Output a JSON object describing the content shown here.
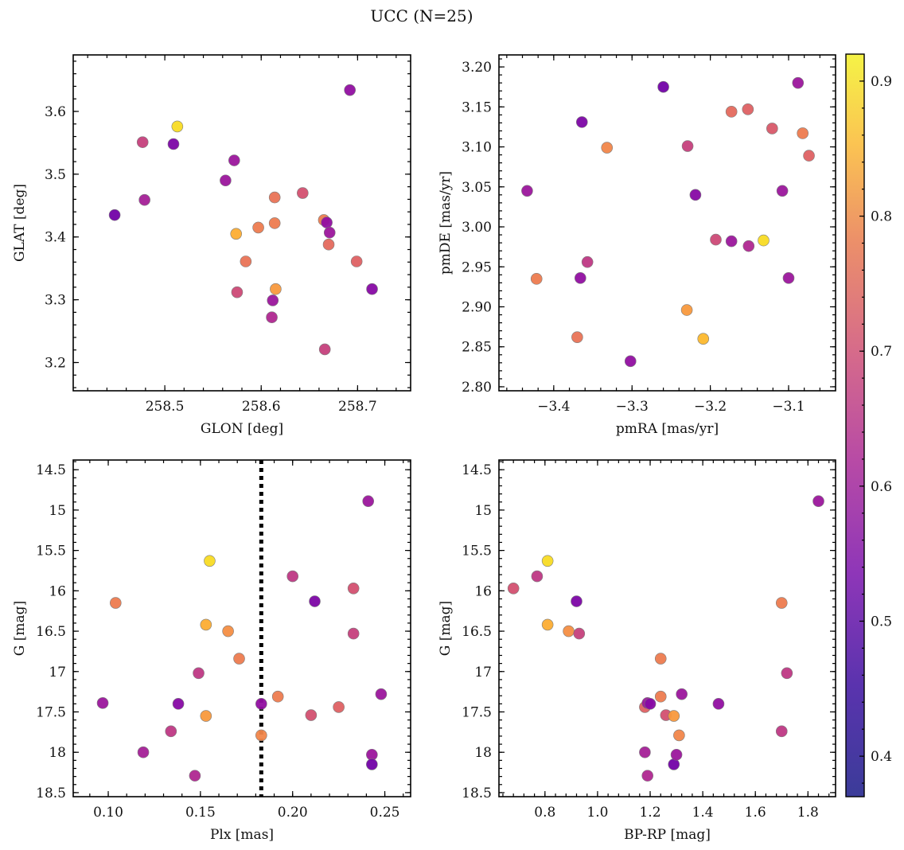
{
  "figure": {
    "title": "UCC (N=25)"
  },
  "colorbar": {
    "range": [
      0.37,
      0.92
    ],
    "ticks": [
      0.4,
      0.5,
      0.6,
      0.7,
      0.8,
      0.9
    ],
    "colormap": "plasma"
  },
  "chart_data": [
    {
      "type": "scatter",
      "id": "glon-glat",
      "xlabel": "GLON [deg]",
      "ylabel": "GLAT [deg]",
      "xlim": [
        258.405,
        258.755
      ],
      "ylim": [
        3.155,
        3.69
      ],
      "xticks": [
        258.5,
        258.6,
        258.7
      ],
      "yticks": [
        3.2,
        3.3,
        3.4,
        3.5,
        3.6
      ],
      "grid": false,
      "points": [
        {
          "x": 258.448,
          "y": 3.435,
          "c": 0.4
        },
        {
          "x": 258.477,
          "y": 3.551,
          "c": 0.58
        },
        {
          "x": 258.479,
          "y": 3.459,
          "c": 0.5
        },
        {
          "x": 258.509,
          "y": 3.548,
          "c": 0.42
        },
        {
          "x": 258.513,
          "y": 3.576,
          "c": 0.9
        },
        {
          "x": 258.563,
          "y": 3.49,
          "c": 0.48
        },
        {
          "x": 258.572,
          "y": 3.522,
          "c": 0.48
        },
        {
          "x": 258.574,
          "y": 3.405,
          "c": 0.82
        },
        {
          "x": 258.575,
          "y": 3.312,
          "c": 0.6
        },
        {
          "x": 258.584,
          "y": 3.361,
          "c": 0.7
        },
        {
          "x": 258.597,
          "y": 3.415,
          "c": 0.72
        },
        {
          "x": 258.611,
          "y": 3.272,
          "c": 0.52
        },
        {
          "x": 258.612,
          "y": 3.299,
          "c": 0.48
        },
        {
          "x": 258.614,
          "y": 3.463,
          "c": 0.7
        },
        {
          "x": 258.614,
          "y": 3.422,
          "c": 0.72
        },
        {
          "x": 258.615,
          "y": 3.317,
          "c": 0.78
        },
        {
          "x": 258.643,
          "y": 3.47,
          "c": 0.62
        },
        {
          "x": 258.665,
          "y": 3.427,
          "c": 0.72
        },
        {
          "x": 258.666,
          "y": 3.221,
          "c": 0.58
        },
        {
          "x": 258.668,
          "y": 3.423,
          "c": 0.46
        },
        {
          "x": 258.67,
          "y": 3.388,
          "c": 0.68
        },
        {
          "x": 258.671,
          "y": 3.407,
          "c": 0.48
        },
        {
          "x": 258.692,
          "y": 3.634,
          "c": 0.46
        },
        {
          "x": 258.699,
          "y": 3.361,
          "c": 0.66
        },
        {
          "x": 258.715,
          "y": 3.317,
          "c": 0.44
        }
      ]
    },
    {
      "type": "scatter",
      "id": "pmra-pmde",
      "xlabel": "pmRA [mas/yr]",
      "ylabel": "pmDE [mas/yr]",
      "xlim": [
        -3.47,
        -3.04
      ],
      "ylim": [
        2.795,
        3.215
      ],
      "xticks": [
        -3.4,
        -3.3,
        -3.2,
        -3.1
      ],
      "xtick_labels": [
        "−3.4",
        "−3.3",
        "−3.2",
        "−3.1"
      ],
      "yticks": [
        2.8,
        2.85,
        2.9,
        2.95,
        3.0,
        3.05,
        3.1,
        3.15,
        3.2
      ],
      "ytick_labels": [
        "2.80",
        "2.85",
        "2.90",
        "2.95",
        "3.00",
        "3.05",
        "3.10",
        "3.15",
        "3.20"
      ],
      "grid": false,
      "points": [
        {
          "x": -3.434,
          "y": 3.045,
          "c": 0.48
        },
        {
          "x": -3.422,
          "y": 2.935,
          "c": 0.72
        },
        {
          "x": -3.37,
          "y": 2.862,
          "c": 0.7
        },
        {
          "x": -3.366,
          "y": 2.936,
          "c": 0.46
        },
        {
          "x": -3.364,
          "y": 3.131,
          "c": 0.42
        },
        {
          "x": -3.357,
          "y": 2.956,
          "c": 0.56
        },
        {
          "x": -3.332,
          "y": 3.099,
          "c": 0.74
        },
        {
          "x": -3.302,
          "y": 2.832,
          "c": 0.46
        },
        {
          "x": -3.26,
          "y": 3.175,
          "c": 0.4
        },
        {
          "x": -3.23,
          "y": 2.896,
          "c": 0.78
        },
        {
          "x": -3.229,
          "y": 3.101,
          "c": 0.58
        },
        {
          "x": -3.219,
          "y": 3.04,
          "c": 0.44
        },
        {
          "x": -3.209,
          "y": 2.86,
          "c": 0.84
        },
        {
          "x": -3.193,
          "y": 2.984,
          "c": 0.6
        },
        {
          "x": -3.173,
          "y": 2.982,
          "c": 0.48
        },
        {
          "x": -3.173,
          "y": 3.144,
          "c": 0.68
        },
        {
          "x": -3.152,
          "y": 3.147,
          "c": 0.66
        },
        {
          "x": -3.151,
          "y": 2.976,
          "c": 0.52
        },
        {
          "x": -3.132,
          "y": 2.983,
          "c": 0.9
        },
        {
          "x": -3.121,
          "y": 3.123,
          "c": 0.64
        },
        {
          "x": -3.108,
          "y": 3.045,
          "c": 0.48
        },
        {
          "x": -3.1,
          "y": 2.936,
          "c": 0.48
        },
        {
          "x": -3.088,
          "y": 3.18,
          "c": 0.48
        },
        {
          "x": -3.082,
          "y": 3.117,
          "c": 0.72
        },
        {
          "x": -3.074,
          "y": 3.089,
          "c": 0.66
        }
      ]
    },
    {
      "type": "scatter",
      "id": "plx-g",
      "xlabel": "Plx [mas]",
      "ylabel": "G [mag]",
      "xlim": [
        0.081,
        0.264
      ],
      "ylim": [
        18.55,
        14.38
      ],
      "y_inverted": true,
      "xticks": [
        0.1,
        0.15,
        0.2,
        0.25
      ],
      "xtick_labels": [
        "0.10",
        "0.15",
        "0.20",
        "0.25"
      ],
      "yticks": [
        14.5,
        15.0,
        15.5,
        16.0,
        16.5,
        17.0,
        17.5,
        18.0,
        18.5
      ],
      "grid": false,
      "vline": {
        "x": 0.183,
        "style": "dotted"
      },
      "points": [
        {
          "x": 0.097,
          "y": 17.39,
          "c": 0.48
        },
        {
          "x": 0.104,
          "y": 16.15,
          "c": 0.72
        },
        {
          "x": 0.119,
          "y": 18.0,
          "c": 0.5
        },
        {
          "x": 0.134,
          "y": 17.74,
          "c": 0.56
        },
        {
          "x": 0.138,
          "y": 17.4,
          "c": 0.44
        },
        {
          "x": 0.147,
          "y": 18.29,
          "c": 0.52
        },
        {
          "x": 0.149,
          "y": 17.02,
          "c": 0.56
        },
        {
          "x": 0.153,
          "y": 17.55,
          "c": 0.78
        },
        {
          "x": 0.153,
          "y": 16.42,
          "c": 0.82
        },
        {
          "x": 0.155,
          "y": 15.63,
          "c": 0.9
        },
        {
          "x": 0.165,
          "y": 16.5,
          "c": 0.76
        },
        {
          "x": 0.171,
          "y": 16.84,
          "c": 0.72
        },
        {
          "x": 0.183,
          "y": 17.4,
          "c": 0.46
        },
        {
          "x": 0.183,
          "y": 17.79,
          "c": 0.74
        },
        {
          "x": 0.192,
          "y": 17.31,
          "c": 0.72
        },
        {
          "x": 0.2,
          "y": 15.82,
          "c": 0.56
        },
        {
          "x": 0.21,
          "y": 17.54,
          "c": 0.62
        },
        {
          "x": 0.212,
          "y": 16.13,
          "c": 0.42
        },
        {
          "x": 0.225,
          "y": 17.44,
          "c": 0.66
        },
        {
          "x": 0.233,
          "y": 15.97,
          "c": 0.62
        },
        {
          "x": 0.233,
          "y": 16.53,
          "c": 0.58
        },
        {
          "x": 0.241,
          "y": 14.89,
          "c": 0.48
        },
        {
          "x": 0.243,
          "y": 18.03,
          "c": 0.48
        },
        {
          "x": 0.243,
          "y": 18.15,
          "c": 0.4
        },
        {
          "x": 0.248,
          "y": 17.28,
          "c": 0.48
        }
      ]
    },
    {
      "type": "scatter",
      "id": "bprp-g",
      "xlabel": "BP-RP [mag]",
      "ylabel": "G [mag]",
      "xlim": [
        0.625,
        1.905
      ],
      "ylim": [
        18.55,
        14.38
      ],
      "y_inverted": true,
      "xticks": [
        0.8,
        1.0,
        1.2,
        1.4,
        1.6,
        1.8
      ],
      "xtick_labels": [
        "0.8",
        "1.0",
        "1.2",
        "1.4",
        "1.6",
        "1.8"
      ],
      "yticks": [
        14.5,
        15.0,
        15.5,
        16.0,
        16.5,
        17.0,
        17.5,
        18.0,
        18.5
      ],
      "grid": false,
      "points": [
        {
          "x": 0.68,
          "y": 15.97,
          "c": 0.62
        },
        {
          "x": 0.77,
          "y": 15.82,
          "c": 0.56
        },
        {
          "x": 0.81,
          "y": 15.63,
          "c": 0.9
        },
        {
          "x": 0.81,
          "y": 16.42,
          "c": 0.82
        },
        {
          "x": 0.89,
          "y": 16.5,
          "c": 0.76
        },
        {
          "x": 0.92,
          "y": 16.13,
          "c": 0.42
        },
        {
          "x": 0.93,
          "y": 16.53,
          "c": 0.58
        },
        {
          "x": 1.18,
          "y": 17.44,
          "c": 0.66
        },
        {
          "x": 1.18,
          "y": 18.0,
          "c": 0.5
        },
        {
          "x": 1.19,
          "y": 17.39,
          "c": 0.48
        },
        {
          "x": 1.19,
          "y": 18.29,
          "c": 0.52
        },
        {
          "x": 1.2,
          "y": 17.4,
          "c": 0.44
        },
        {
          "x": 1.24,
          "y": 16.84,
          "c": 0.72
        },
        {
          "x": 1.24,
          "y": 17.31,
          "c": 0.72
        },
        {
          "x": 1.26,
          "y": 17.54,
          "c": 0.62
        },
        {
          "x": 1.29,
          "y": 17.55,
          "c": 0.78
        },
        {
          "x": 1.29,
          "y": 18.15,
          "c": 0.4
        },
        {
          "x": 1.3,
          "y": 18.03,
          "c": 0.48
        },
        {
          "x": 1.31,
          "y": 17.79,
          "c": 0.74
        },
        {
          "x": 1.32,
          "y": 17.28,
          "c": 0.48
        },
        {
          "x": 1.46,
          "y": 17.4,
          "c": 0.46
        },
        {
          "x": 1.7,
          "y": 16.15,
          "c": 0.72
        },
        {
          "x": 1.7,
          "y": 17.74,
          "c": 0.56
        },
        {
          "x": 1.72,
          "y": 17.02,
          "c": 0.56
        },
        {
          "x": 1.84,
          "y": 14.89,
          "c": 0.48
        }
      ]
    }
  ]
}
